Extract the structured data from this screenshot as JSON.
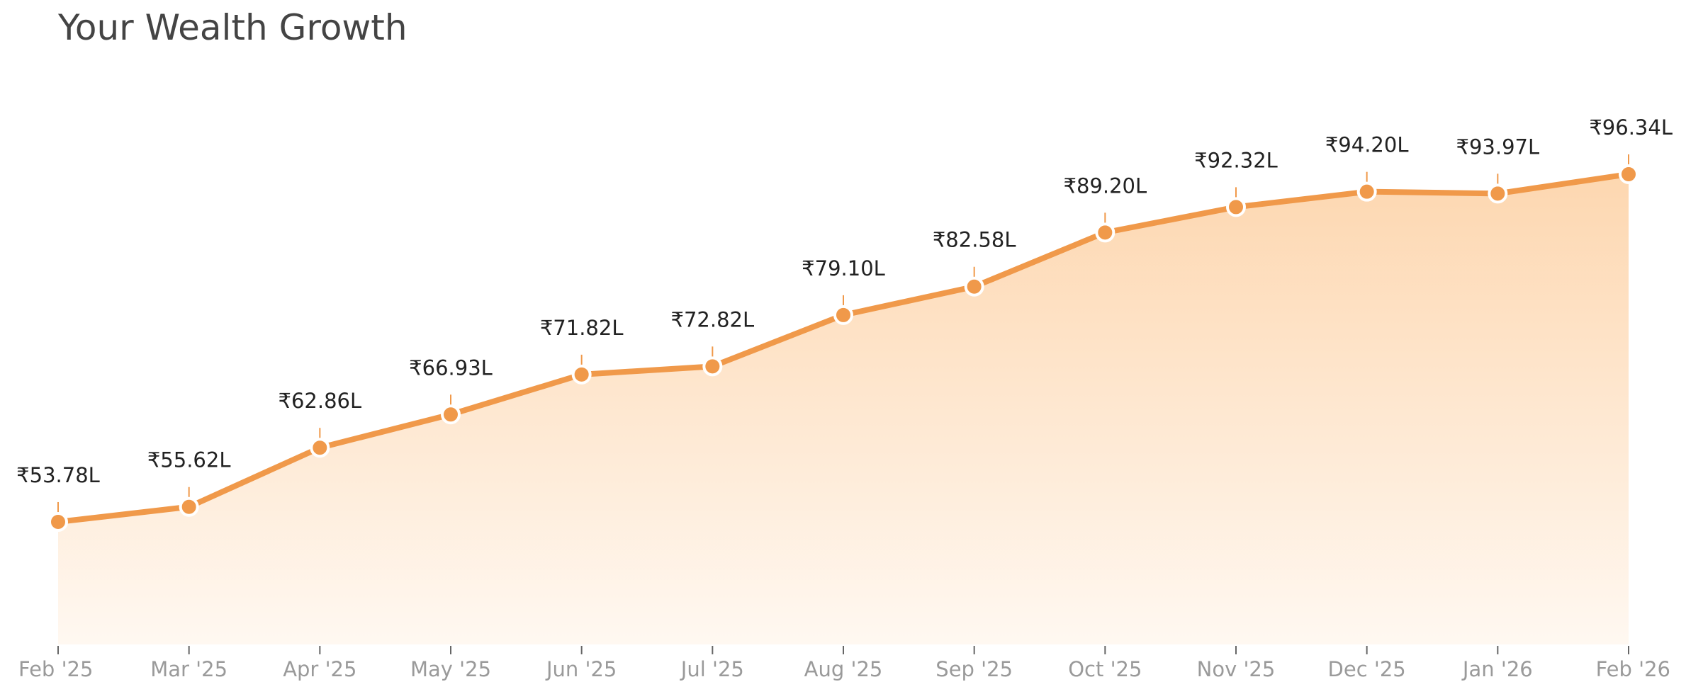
{
  "title": "Your Wealth Growth",
  "colors": {
    "line": "#f0994a",
    "fill_top": "#fdd7b0",
    "fill_bottom": "#fff8f1",
    "point_stroke": "#ffffff",
    "tick": "#f0994a"
  },
  "chart_data": {
    "type": "area",
    "title": "Your Wealth Growth",
    "xlabel": "",
    "ylabel": "",
    "unit": "₹ Lakh",
    "categories": [
      "Feb '25",
      "Mar '25",
      "Apr '25",
      "May '25",
      "Jun '25",
      "Jul '25",
      "Aug '25",
      "Sep '25",
      "Oct '25",
      "Nov '25",
      "Dec '25",
      "Jan '26",
      "Feb '26"
    ],
    "values": [
      53.78,
      55.62,
      62.86,
      66.93,
      71.82,
      72.82,
      79.1,
      82.58,
      89.2,
      92.32,
      94.2,
      93.97,
      96.34
    ],
    "labels": [
      "₹53.78L",
      "₹55.62L",
      "₹62.86L",
      "₹66.93L",
      "₹71.82L",
      "₹72.82L",
      "₹79.10L",
      "₹82.58L",
      "₹89.20L",
      "₹92.32L",
      "₹94.20L",
      "₹93.97L",
      "₹96.34L"
    ],
    "ylim": [
      38.78,
      96.34
    ],
    "grid": false,
    "legend": "none"
  }
}
